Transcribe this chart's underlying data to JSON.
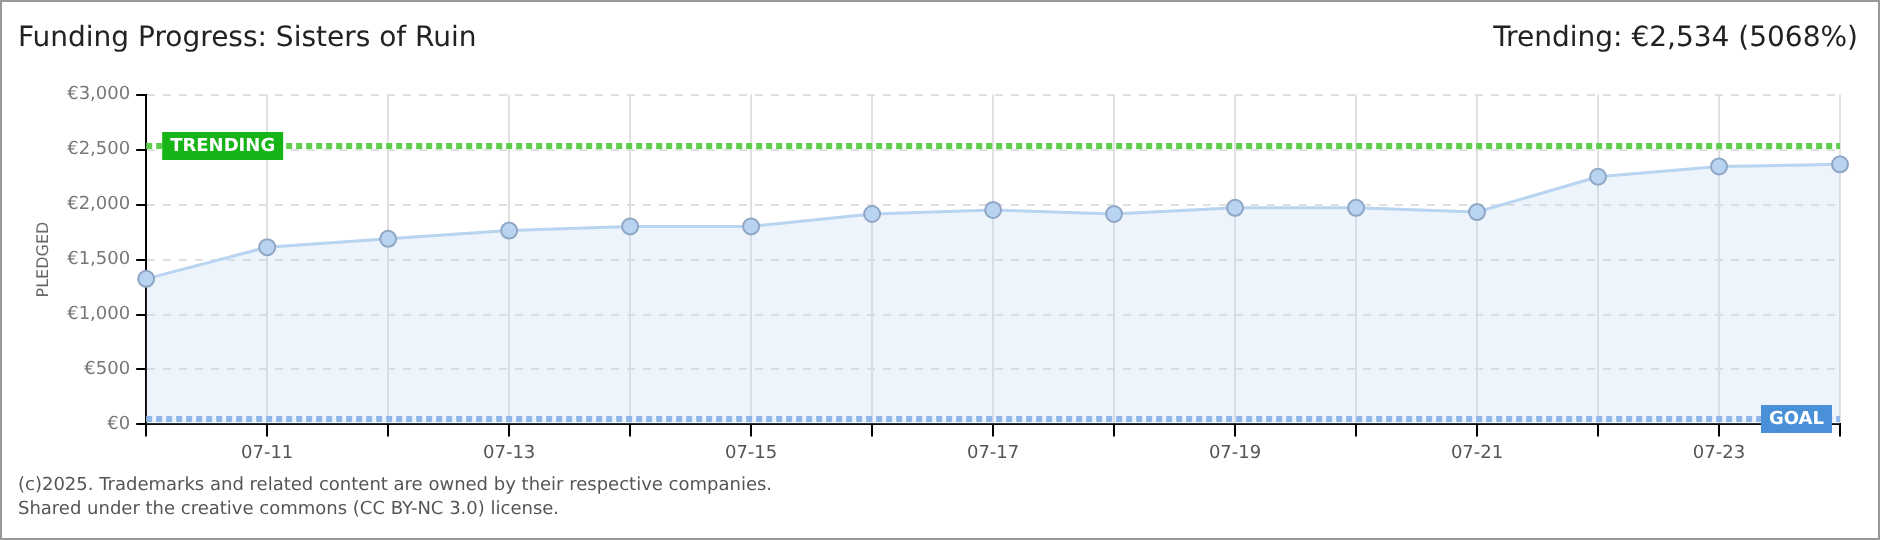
{
  "chart_data": {
    "type": "area",
    "title": "Funding Progress: Sisters of Ruin",
    "subtitle": "Trending: €2,534 (5068%)",
    "ylabel": "PLEDGED",
    "categories": [
      null,
      "07-11",
      null,
      "07-13",
      null,
      "07-15",
      null,
      "07-17",
      null,
      "07-19",
      null,
      "07-21",
      null,
      "07-23",
      null
    ],
    "series": [
      {
        "color": "#b8d4f0",
        "values": [
          1325,
          1613,
          1689,
          1764,
          1802,
          1802,
          1915,
          1952,
          1915,
          1971,
          1971,
          1933,
          2254,
          2348,
          2367
        ]
      }
    ],
    "ylim": [
      0,
      3000
    ],
    "yticks": [
      {
        "value": 0,
        "label": "€0"
      },
      {
        "value": 500,
        "label": "€500"
      },
      {
        "value": 1000,
        "label": "€1,000"
      },
      {
        "value": 1500,
        "label": "€1,500"
      },
      {
        "value": 2000,
        "label": "€2,000"
      },
      {
        "value": 2500,
        "label": "€2,500"
      },
      {
        "value": 3000,
        "label": "€3,000"
      }
    ],
    "ref_lines": [
      {
        "axis": "y",
        "value": 2534,
        "label": "TRENDING",
        "color": "#5fce4a",
        "line_style": "dotted"
      },
      {
        "axis": "y",
        "value": 50,
        "label": "GOAL",
        "color": "#8fb8e6",
        "line_style": "dotted"
      }
    ],
    "grid": true,
    "legend": false,
    "marker": "circle",
    "annotations": [
      "(c)2025. Trademarks and related content are owned by their respective companies.",
      "Shared under the creative commons (CC BY-NC 3.0) license."
    ]
  }
}
